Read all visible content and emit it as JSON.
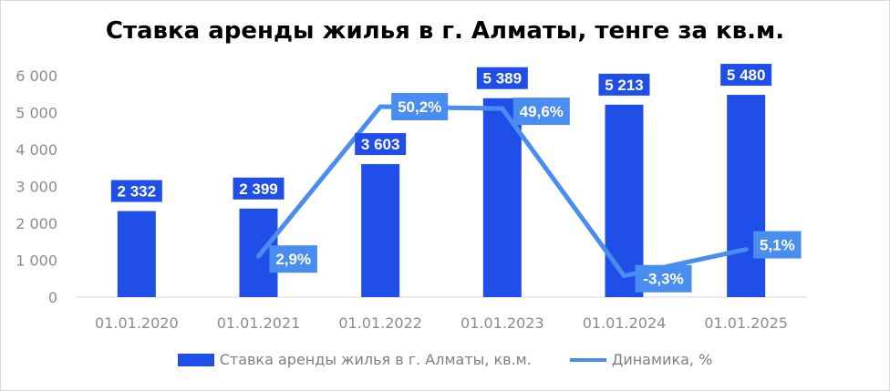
{
  "chart_data": {
    "type": "bar+line",
    "title": "Ставка аренды жилья в г. Алматы, тенге за кв.м.",
    "categories": [
      "01.01.2020",
      "01.01.2021",
      "01.01.2022",
      "01.01.2023",
      "01.01.2024",
      "01.01.2025"
    ],
    "yticks": [
      "0",
      "1 000",
      "2 000",
      "3 000",
      "4 000",
      "5 000",
      "6 000"
    ],
    "ylim": [
      0,
      6000
    ],
    "grid": false,
    "legend_position": "bottom",
    "series": [
      {
        "name": "Ставка аренды жилья в г. Алматы, кв.м.",
        "type": "bar",
        "color": "#1f4fe8",
        "values": [
          2332,
          2399,
          3603,
          5389,
          5213,
          5480
        ],
        "labels": [
          "2 332",
          "2 399",
          "3 603",
          "5 389",
          "5 213",
          "5 480"
        ]
      },
      {
        "name": "Динамика, %",
        "type": "line",
        "color": "#4a8df0",
        "values": [
          null,
          2.9,
          50.2,
          49.6,
          -3.3,
          5.1
        ],
        "labels": [
          "",
          "2,9%",
          "50,2%",
          "49,6%",
          "-3,3%",
          "5,1%"
        ]
      }
    ]
  }
}
